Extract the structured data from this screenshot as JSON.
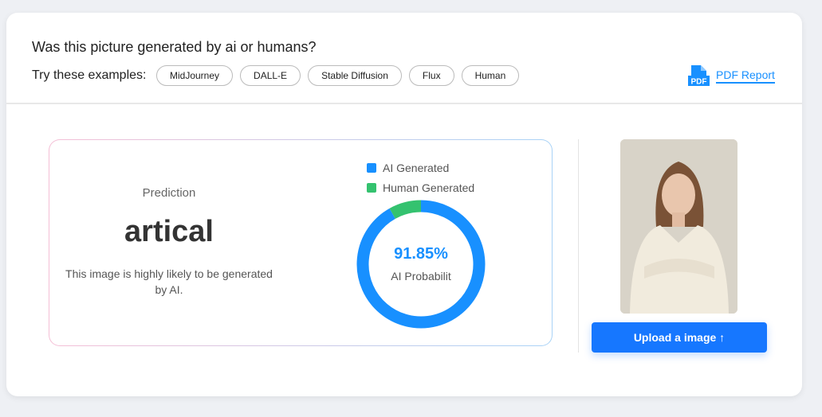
{
  "header": {
    "question": "Was this picture generated by ai or humans?",
    "try_label": "Try these examples:",
    "examples": [
      "MidJourney",
      "DALL-E",
      "Stable Diffusion",
      "Flux",
      "Human"
    ],
    "pdf_badge": "PDF",
    "pdf_label": "PDF Report"
  },
  "prediction": {
    "label": "Prediction",
    "value": "artical",
    "description": "This image is highly likely to be generated by AI."
  },
  "chart_data": {
    "type": "pie",
    "series": [
      {
        "name": "AI Generated",
        "value": 91.85,
        "color": "#1890ff"
      },
      {
        "name": "Human Generated",
        "value": 8.15,
        "color": "#34c26f"
      }
    ],
    "center_value": "91.85%",
    "center_label": "AI Probabilit"
  },
  "upload": {
    "label": "Upload a image ↑"
  }
}
